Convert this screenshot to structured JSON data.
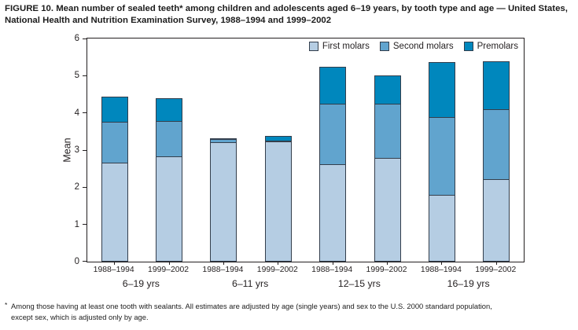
{
  "title": "FIGURE 10. Mean number of sealed teeth* among children and adolescents aged 6–19 years, by tooth type and age — United States, National Health and Nutrition Examination Survey, 1988–1994 and 1999–2002",
  "footnote": {
    "marker": "*",
    "line1": "Among those having at least one tooth with sealants. All estimates are adjusted by age (single years) and sex to the U.S. 2000 standard population,",
    "line2": "except sex, which is adjusted only by age."
  },
  "colors": {
    "first_molars": "#b5cde3",
    "second_molars": "#61a4ce",
    "premolars": "#0087bd",
    "segment_border": "#333e4c",
    "axis": "#231f20"
  },
  "chart_data": {
    "type": "bar",
    "stacked": true,
    "title": "",
    "xlabel": "",
    "ylabel": "Mean",
    "ylim": [
      0,
      6
    ],
    "yticks": [
      0,
      1,
      2,
      3,
      4,
      5,
      6
    ],
    "grid": false,
    "legend_position": "top-right-inside",
    "categories": [
      "1988–1994",
      "1999–2002",
      "1988–1994",
      "1999–2002",
      "1988–1994",
      "1999–2002",
      "1988–1994",
      "1999–2002"
    ],
    "groups": [
      {
        "label": "6–19 yrs",
        "span": 2
      },
      {
        "label": "6–11 yrs",
        "span": 2
      },
      {
        "label": "12–15 yrs",
        "span": 2
      },
      {
        "label": "16–19 yrs",
        "span": 2
      }
    ],
    "series": [
      {
        "name": "First molars",
        "color": "#b5cde3",
        "values": [
          2.66,
          2.83,
          3.22,
          3.24,
          2.63,
          2.78,
          1.8,
          2.22
        ]
      },
      {
        "name": "Second molars",
        "color": "#61a4ce",
        "values": [
          1.12,
          0.98,
          0.09,
          0.02,
          1.64,
          1.49,
          2.1,
          1.91
        ]
      },
      {
        "name": "Premolars",
        "color": "#0087bd",
        "values": [
          0.7,
          0.63,
          0.04,
          0.15,
          1.01,
          0.78,
          1.5,
          1.29
        ]
      }
    ],
    "stack_totals": [
      4.48,
      4.44,
      3.35,
      3.41,
      5.28,
      5.05,
      5.4,
      5.42
    ]
  }
}
